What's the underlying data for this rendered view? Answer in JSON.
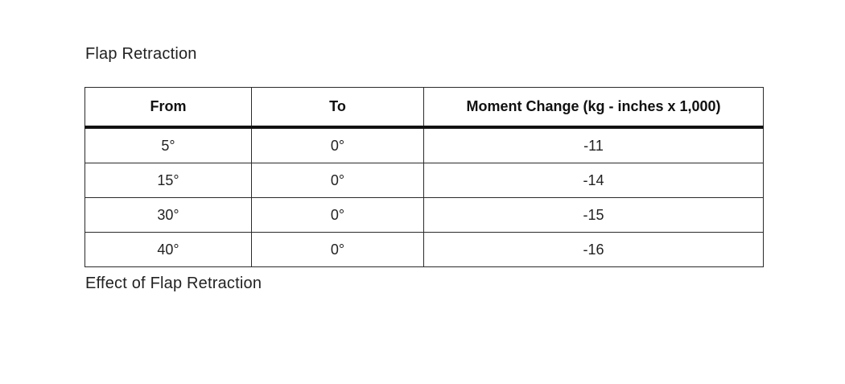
{
  "heading": "Flap Retraction",
  "table": {
    "headers": [
      "From",
      "To",
      "Moment Change (kg - inches x 1,000)"
    ],
    "rows": [
      [
        "5°",
        "0°",
        "-11"
      ],
      [
        "15°",
        "0°",
        "-14"
      ],
      [
        "30°",
        "0°",
        "-15"
      ],
      [
        "40°",
        "0°",
        "-16"
      ]
    ]
  },
  "caption": "Effect of Flap Retraction"
}
